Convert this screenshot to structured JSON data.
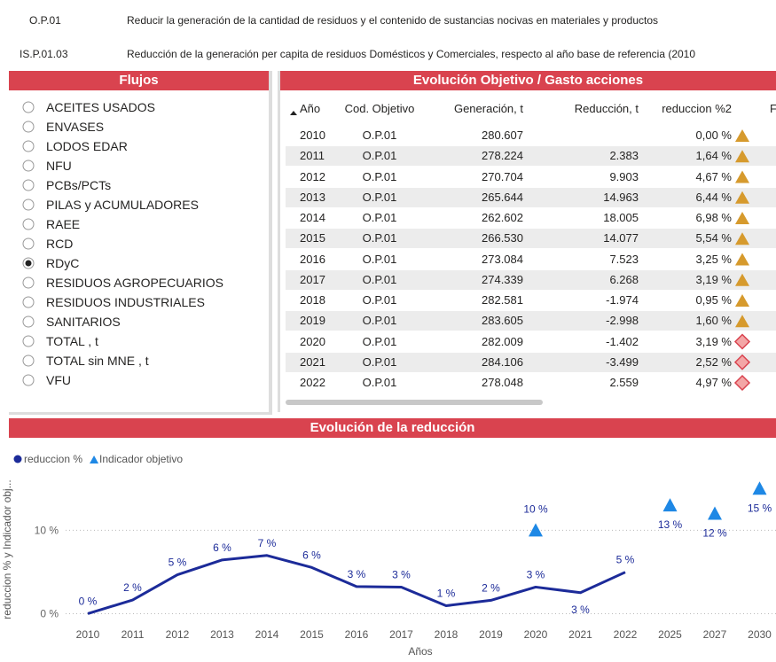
{
  "header": {
    "rows": [
      {
        "code": "O.P.01",
        "text": "Reducir la generación de la cantidad de residuos y el contenido de sustancias nocivas en materiales y productos"
      },
      {
        "code": "IS.P.01.03",
        "text": "Reducción de la generación per capita de residuos Domésticos y Comerciales, respecto al año base de referencia (2010"
      }
    ]
  },
  "flujos": {
    "title": "Flujos",
    "selected_index": 8,
    "options": [
      "ACEITES USADOS",
      "ENVASES",
      "LODOS EDAR",
      "NFU",
      "PCBs/PCTs",
      "PILAS y ACUMULADORES",
      "RAEE",
      "RCD",
      "RDyC",
      "RESIDUOS AGROPECUARIOS",
      "RESIDUOS INDUSTRIALES",
      "SANITARIOS",
      "TOTAL , t",
      "TOTAL sin MNE , t",
      "VFU"
    ]
  },
  "table": {
    "title": "Evolución Objetivo / Gasto acciones",
    "columns": [
      "Año",
      "Cod. Objetivo",
      "Generación, t",
      "Reducción, t",
      "reduccion %2",
      "F"
    ],
    "rows": [
      [
        2010,
        "O.P.01",
        "280.607",
        null,
        "0,00 %"
      ],
      [
        2011,
        "O.P.01",
        "278.224",
        "2.383",
        "1,64 %"
      ],
      [
        2012,
        "O.P.01",
        "270.704",
        "9.903",
        "4,67 %"
      ],
      [
        2013,
        "O.P.01",
        "265.644",
        "14.963",
        "6,44 %"
      ],
      [
        2014,
        "O.P.01",
        "262.602",
        "18.005",
        "6,98 %"
      ],
      [
        2015,
        "O.P.01",
        "266.530",
        "14.077",
        "5,54 %"
      ],
      [
        2016,
        "O.P.01",
        "273.084",
        "7.523",
        "3,25 %"
      ],
      [
        2017,
        "O.P.01",
        "274.339",
        "6.268",
        "3,19 %"
      ],
      [
        2018,
        "O.P.01",
        "282.581",
        "-1.974",
        "0,95 %"
      ],
      [
        2019,
        "O.P.01",
        "283.605",
        "-2.998",
        "1,60 %"
      ],
      [
        2020,
        "O.P.01",
        "282.009",
        "-1.402",
        "3,19 %"
      ],
      [
        2021,
        "O.P.01",
        "284.106",
        "-3.499",
        "2,52 %"
      ],
      [
        2022,
        "O.P.01",
        "278.048",
        "2.559",
        "4,97 %"
      ]
    ],
    "icons": [
      "triangle",
      "triangle",
      "triangle",
      "triangle",
      "triangle",
      "triangle",
      "triangle",
      "triangle",
      "triangle",
      "triangle",
      "diamond",
      "diamond",
      "diamond"
    ]
  },
  "chart_data": {
    "type": "line",
    "title": "Evolución de la reducción",
    "x_label": "Años",
    "y_label": "reduccion % y Indicador obj...",
    "categories": [
      "2010",
      "2011",
      "2012",
      "2013",
      "2014",
      "2015",
      "2016",
      "2017",
      "2018",
      "2019",
      "2020",
      "2021",
      "2022",
      "2025",
      "2027",
      "2030"
    ],
    "series": [
      {
        "name": "reduccion %",
        "color": "#1c2b99",
        "marker": "line",
        "values": [
          0,
          1.64,
          4.67,
          6.44,
          6.98,
          5.54,
          3.25,
          3.19,
          0.95,
          1.6,
          3.19,
          2.52,
          4.97,
          null,
          null,
          null
        ],
        "value_labels": [
          "0 %",
          "2 %",
          "5 %",
          "6 %",
          "7 %",
          "6 %",
          "3 %",
          "3 %",
          "1 %",
          "2 %",
          "3 %",
          "3 %",
          "5 %",
          null,
          null,
          null
        ]
      },
      {
        "name": "Indicador objetivo",
        "color": "#1e88e5",
        "marker": "triangle",
        "values": [
          null,
          null,
          null,
          null,
          null,
          null,
          null,
          null,
          null,
          null,
          10,
          null,
          null,
          13,
          12,
          15
        ],
        "value_labels": [
          null,
          null,
          null,
          null,
          null,
          null,
          null,
          null,
          null,
          null,
          "10 %",
          null,
          null,
          "13 %",
          "12 %",
          "15 %"
        ]
      }
    ],
    "ylim": [
      -0.8,
      16.2
    ],
    "yticks": [
      {
        "value": 0,
        "label": "0 %"
      },
      {
        "value": 10,
        "label": "10 %"
      }
    ],
    "grid": true
  }
}
